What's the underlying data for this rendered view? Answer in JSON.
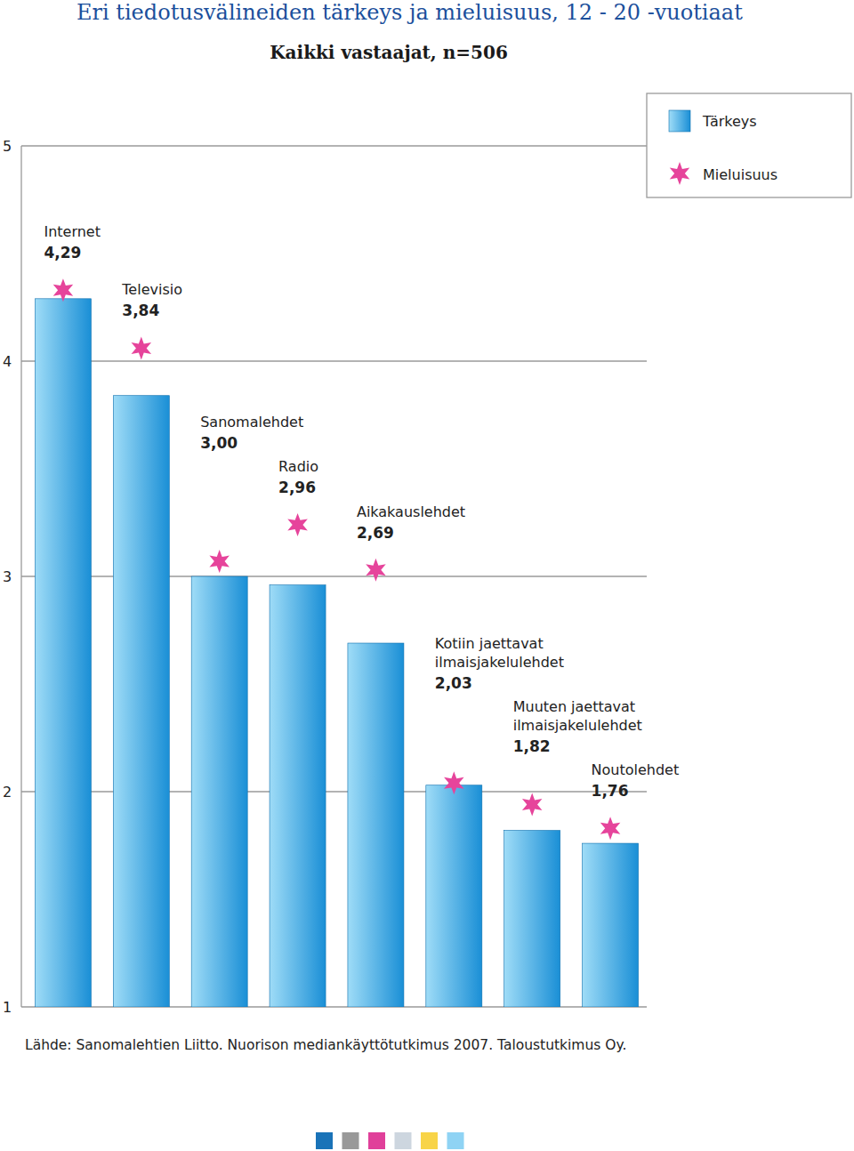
{
  "chart_data": {
    "type": "bar",
    "title": "Eri tiedotusvälineiden tärkeys ja mieluisuus, 12 - 20 -vuotiaat",
    "subtitle": "Kaikki vastaajat, n=506",
    "source": "Lähde: Sanomalehtien Liitto. Nuorison mediankäyttötutkimus 2007. Taloustutkimus Oy.",
    "categories": [
      "Internet",
      "Televisio",
      "Sanomalehdet",
      "Radio",
      "Aikakauslehdet",
      "Kotiin jaettavat\nilmaisjakelulehdet",
      "Muuten jaettavat\nilmaisjakelulehdet",
      "Noutolehdet"
    ],
    "series": [
      {
        "name": "Tärkeys",
        "type": "bar",
        "color": "#1a8fd6",
        "values": [
          4.29,
          3.84,
          3.0,
          2.96,
          2.69,
          2.03,
          1.82,
          1.76
        ],
        "value_labels": [
          "4,29",
          "3,84",
          "3,00",
          "2,96",
          "2,69",
          "2,03",
          "1,82",
          "1,76"
        ]
      },
      {
        "name": "Mieluisuus",
        "type": "scatter",
        "marker": "star",
        "color": "#e6449b",
        "values": [
          4.33,
          4.06,
          3.07,
          3.24,
          3.03,
          2.04,
          1.94,
          1.83
        ]
      }
    ],
    "ylim": [
      1,
      5
    ],
    "yticks": [
      1,
      2,
      3,
      4,
      5
    ],
    "grid": true,
    "legend": "top-right",
    "data_labels": true
  }
}
